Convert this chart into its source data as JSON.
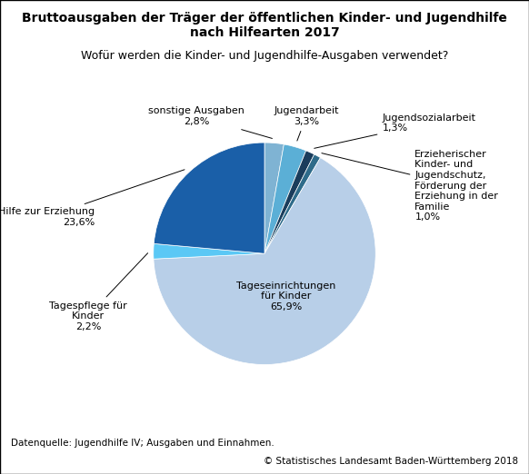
{
  "title_line1": "Bruttoausgaben der Träger der öffentlichen Kinder- und Jugendhilfe",
  "title_line2": "nach Hilfearten 2017",
  "subtitle": "Wofür werden die Kinder- und Jugendhilfe-Ausgaben verwendet?",
  "slices": [
    {
      "label": "Tageseinrichtungen\nfür Kinder\n65,9%",
      "value": 65.9,
      "color": "#b8cfe8",
      "label_inside": true
    },
    {
      "label": "Erzieherischer\nKinder- und\nJugendschutz,\nFörderung der\nErziehung in der\nFamilie\n1,0%",
      "value": 1.0,
      "color": "#2e6b8a",
      "label_inside": false
    },
    {
      "label": "Jugendsozialarbeit\n1,3%",
      "value": 1.3,
      "color": "#1a3d5c",
      "label_inside": false
    },
    {
      "label": "Jugendarbeit\n3,3%",
      "value": 3.3,
      "color": "#5bafd6",
      "label_inside": false
    },
    {
      "label": "sonstige Ausgaben\n2,8%",
      "value": 2.8,
      "color": "#7fb3d3",
      "label_inside": false
    },
    {
      "label": "Hilfe zur Erziehung\n23,6%",
      "value": 23.6,
      "color": "#1a5fa8",
      "label_inside": false
    },
    {
      "label": "Tagespflege für\nKinder\n2,2%",
      "value": 2.2,
      "color": "#5bc8f5",
      "label_inside": false
    }
  ],
  "footnote1": "Datenquelle: Jugendhilfe IV; Ausgaben und Einnahmen.",
  "footnote2": "© Statistisches Landesamt Baden-Württemberg 2018",
  "background_color": "#ffffff",
  "border_color": "#000000",
  "title_fontsize": 10,
  "subtitle_fontsize": 9,
  "label_fontsize": 8,
  "footnote_fontsize": 7.5
}
